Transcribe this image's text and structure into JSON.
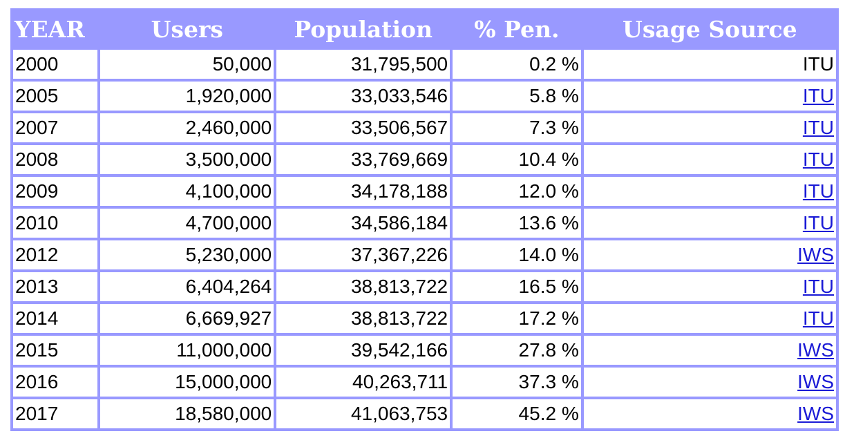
{
  "headers": {
    "year": "YEAR",
    "users": "Users",
    "population": "Population",
    "pen": "% Pen.",
    "source": "Usage Source"
  },
  "rows": [
    {
      "year": "2000",
      "users": "50,000",
      "population": "31,795,500",
      "pen": "0.2 %",
      "source": "ITU",
      "linked": false
    },
    {
      "year": "2005",
      "users": "1,920,000",
      "population": "33,033,546",
      "pen": "5.8 %",
      "source": "ITU",
      "linked": true
    },
    {
      "year": "2007",
      "users": "2,460,000",
      "population": "33,506,567",
      "pen": "7.3 %",
      "source": "ITU",
      "linked": true
    },
    {
      "year": "2008",
      "users": "3,500,000",
      "population": "33,769,669",
      "pen": "10.4 %",
      "source": "ITU",
      "linked": true
    },
    {
      "year": "2009",
      "users": "4,100,000",
      "population": "34,178,188",
      "pen": "12.0 %",
      "source": "ITU",
      "linked": true
    },
    {
      "year": "2010",
      "users": "4,700,000",
      "population": "34,586,184",
      "pen": "13.6 %",
      "source": "ITU",
      "linked": true
    },
    {
      "year": "2012",
      "users": "5,230,000",
      "population": "37,367,226",
      "pen": "14.0 %",
      "source": "IWS",
      "linked": true
    },
    {
      "year": "2013",
      "users": "6,404,264",
      "population": "38,813,722",
      "pen": "16.5 %",
      "source": "ITU",
      "linked": true
    },
    {
      "year": "2014",
      "users": "6,669,927",
      "population": "38,813,722",
      "pen": "17.2 %",
      "source": "ITU",
      "linked": true
    },
    {
      "year": "2015",
      "users": "11,000,000",
      "population": "39,542,166",
      "pen": "27.8 %",
      "source": "IWS",
      "linked": true
    },
    {
      "year": "2016",
      "users": "15,000,000",
      "population": "40,263,711",
      "pen": "37.3 %",
      "source": "IWS",
      "linked": true
    },
    {
      "year": "2017",
      "users": "18,580,000",
      "population": "41,063,753",
      "pen": "45.2 %",
      "source": "IWS",
      "linked": true
    }
  ],
  "colors": {
    "frame": "#9999ff",
    "header_text": "#ffffff",
    "link": "#1a1ad6"
  }
}
